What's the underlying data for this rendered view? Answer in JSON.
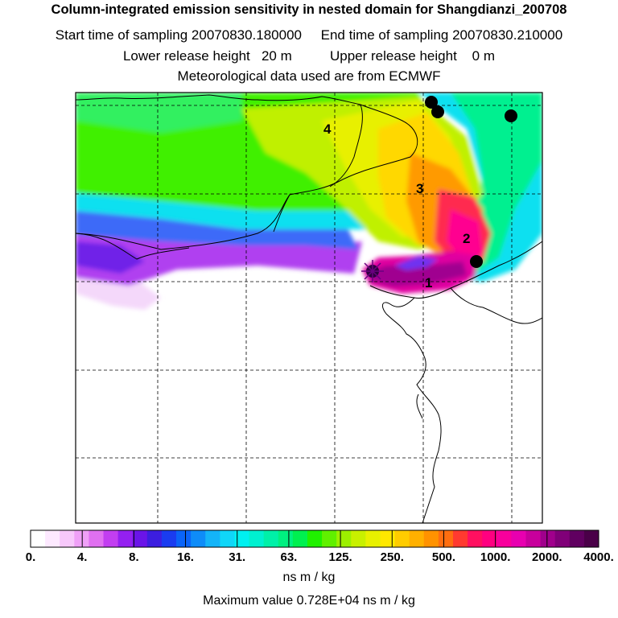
{
  "header": {
    "title": "Column-integrated emission sensitivity in nested domain for Shangdianzi_200708",
    "sampling_line": "Start time of sampling 20070830.180000     End time of sampling 20070830.210000",
    "release_line": "Lower release height   20 m          Upper release height    0 m",
    "met_line": "Meteorological data used are from ECMWF"
  },
  "map": {
    "plume_labels": [
      "1",
      "2",
      "3",
      "4"
    ],
    "markers": [
      "release-site-marker",
      "black-dot-marker"
    ]
  },
  "colorbar": {
    "ticks": [
      "0.",
      "4.",
      "8.",
      "16.",
      "31.",
      "63.",
      "125.",
      "250.",
      "500.",
      "1000.",
      "2000.",
      "4000."
    ],
    "colors": [
      "#ffffff",
      "#fde9ff",
      "#f7c8fb",
      "#efa0f7",
      "#e070f0",
      "#c23ef0",
      "#9420f0",
      "#6a14e8",
      "#3c1ee0",
      "#1a3cf0",
      "#0a64f8",
      "#0e8cf8",
      "#14b4f8",
      "#10d6f8",
      "#00f0f0",
      "#00f0d0",
      "#00f0a8",
      "#00f080",
      "#00f050",
      "#20f000",
      "#60f000",
      "#9cf000",
      "#c8f000",
      "#e8f000",
      "#ffe800",
      "#ffcc00",
      "#ffb000",
      "#ff9200",
      "#ff6e10",
      "#ff3a30",
      "#ff1060",
      "#ff0080",
      "#f8009c",
      "#e800b0",
      "#c8009c",
      "#a0008c",
      "#800078",
      "#600060",
      "#4a0048"
    ],
    "units": "ns m / kg"
  },
  "footer": {
    "max_value": "Maximum value  0.728E+04 ns m / kg"
  }
}
